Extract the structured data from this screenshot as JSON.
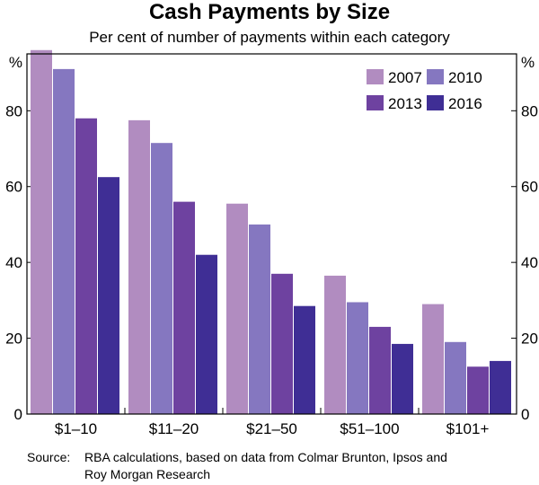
{
  "chart_data": {
    "type": "bar",
    "title": "Cash Payments by Size",
    "subtitle": "Per cent of number of payments within each category",
    "ylabel": "%",
    "ylim": [
      0,
      95
    ],
    "yticks": [
      0,
      20,
      40,
      60,
      80
    ],
    "categories": [
      "$1–10",
      "$11–20",
      "$21–50",
      "$51–100",
      "$101+"
    ],
    "series": [
      {
        "name": "2007",
        "color": "#b18cc0",
        "values": [
          96,
          77.5,
          55.5,
          36.5,
          29
        ]
      },
      {
        "name": "2010",
        "color": "#8577c0",
        "values": [
          91,
          71.5,
          50,
          29.5,
          19
        ]
      },
      {
        "name": "2013",
        "color": "#6e42a0",
        "values": [
          78,
          56,
          37,
          23,
          12.5
        ]
      },
      {
        "name": "2016",
        "color": "#3f2e95",
        "values": [
          62.5,
          42,
          28.5,
          18.5,
          14
        ]
      }
    ],
    "legend_position": "top-right",
    "source_label": "Source:",
    "source_text": "RBA calculations, based on data from Colmar Brunton, Ipsos and Roy Morgan Research"
  }
}
